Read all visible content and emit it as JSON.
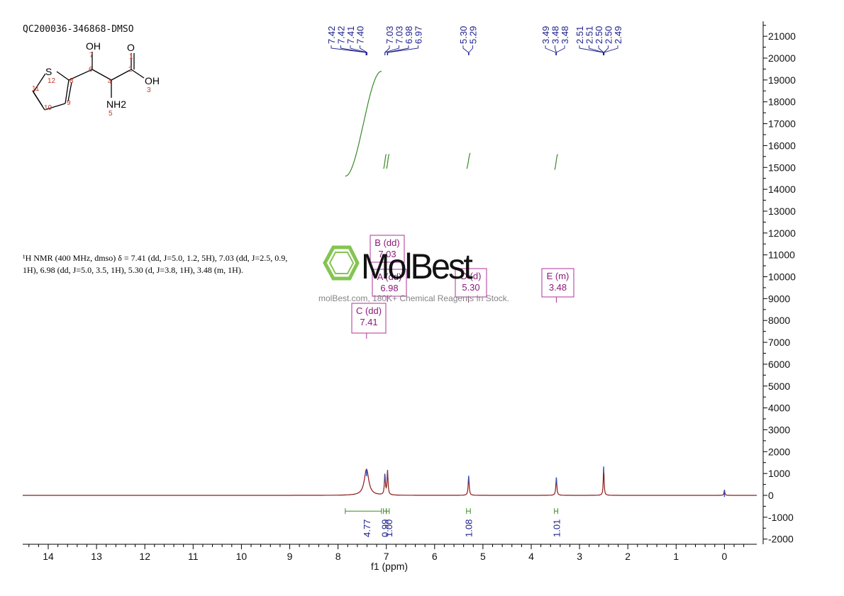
{
  "sample_id": "QC200036-346868-DMSO",
  "structure": {
    "atoms": [
      {
        "label": "OH",
        "num": "7"
      },
      {
        "label": "O",
        "num": "1"
      },
      {
        "label": "S",
        "num": "12"
      },
      {
        "label": "OH",
        "num": "3"
      },
      {
        "label": "NH2",
        "num": "5"
      }
    ],
    "locants": [
      "6",
      "2",
      "8",
      "4",
      "11",
      "10",
      "9"
    ]
  },
  "nmr_description": {
    "line1": "¹H NMR (400 MHz, dmso) δ = 7.41 (dd, J=5.0, 1.2, 5H), 7.03 (dd, J=2.5, 0.9,",
    "line2": "1H), 6.98 (dd, J=5.0, 3.5, 1H), 5.30 (d, J=3.8, 1H), 3.48 (m, 1H)."
  },
  "watermark": {
    "brand": "MolBest",
    "tagline": "molBest.com, 180K+ Chemical Reagents In Stock."
  },
  "colors": {
    "spectrum": "#8b1a1a",
    "integral": "#3a8a2a",
    "peak_label": "#1b1f8a",
    "multiplet_box": "#b0309a",
    "watermark_green": "#7bc043"
  },
  "chart_data": {
    "type": "line",
    "title": "",
    "xlabel": "f1 (ppm)",
    "ylabel": "",
    "x_reversed": true,
    "xlim": [
      14.5,
      -0.55
    ],
    "ylim": [
      -2000,
      21500
    ],
    "x_ticks": [
      "14",
      "13",
      "12",
      "11",
      "10",
      "9",
      "8",
      "7",
      "6",
      "5",
      "4",
      "3",
      "2",
      "1",
      "0"
    ],
    "y_ticks": [
      "21000",
      "20000",
      "19000",
      "18000",
      "17000",
      "16000",
      "15000",
      "14000",
      "13000",
      "12000",
      "11000",
      "10000",
      "9000",
      "8000",
      "7000",
      "6000",
      "5000",
      "4000",
      "3000",
      "2000",
      "1000",
      "0",
      "-1000",
      "-2000"
    ],
    "peaks": [
      {
        "ppm": 7.41,
        "height": 1200,
        "width": 0.055
      },
      {
        "ppm": 7.03,
        "height": 950,
        "width": 0.012
      },
      {
        "ppm": 6.975,
        "height": 1120,
        "width": 0.012
      },
      {
        "ppm": 5.295,
        "height": 900,
        "width": 0.012
      },
      {
        "ppm": 3.48,
        "height": 820,
        "width": 0.012
      },
      {
        "ppm": 2.5,
        "height": 1320,
        "width": 0.01
      },
      {
        "ppm": 0.0,
        "height": 250,
        "width": 0.01
      }
    ],
    "peak_labels": [
      {
        "text": "7.42",
        "ppm": 7.42
      },
      {
        "text": "7.42",
        "ppm": 7.418
      },
      {
        "text": "7.41",
        "ppm": 7.41
      },
      {
        "text": "7.40",
        "ppm": 7.4
      },
      {
        "text": "7.03",
        "ppm": 7.03
      },
      {
        "text": "7.03",
        "ppm": 7.028
      },
      {
        "text": "6.98",
        "ppm": 6.98
      },
      {
        "text": "6.97",
        "ppm": 6.97
      },
      {
        "text": "5.30",
        "ppm": 5.3
      },
      {
        "text": "5.29",
        "ppm": 5.29
      },
      {
        "text": "3.49",
        "ppm": 3.49
      },
      {
        "text": "3.48",
        "ppm": 3.48
      },
      {
        "text": "3.48",
        "ppm": 3.478
      },
      {
        "text": "2.51",
        "ppm": 2.51
      },
      {
        "text": "2.51",
        "ppm": 2.508
      },
      {
        "text": "2.50",
        "ppm": 2.5
      },
      {
        "text": "2.50",
        "ppm": 2.498
      },
      {
        "text": "2.49",
        "ppm": 2.49
      }
    ],
    "integrals": [
      {
        "value": "4.77",
        "from": 7.85,
        "to": 7.1,
        "curve_low": 14600,
        "curve_high": 19400
      },
      {
        "value": "0.99",
        "from": 7.06,
        "to": 7.0,
        "curve_low": 14950,
        "curve_high": 15600
      },
      {
        "value": "1.00",
        "from": 7.0,
        "to": 6.94,
        "curve_low": 14950,
        "curve_high": 15600
      },
      {
        "value": "1.08",
        "from": 5.34,
        "to": 5.26,
        "curve_low": 14950,
        "curve_high": 15650
      },
      {
        "value": "1.01",
        "from": 3.52,
        "to": 3.45,
        "curve_low": 14900,
        "curve_high": 15600
      }
    ],
    "multiplets": [
      {
        "name": "B (dd)",
        "value": "7.03",
        "ppm": 7.03
      },
      {
        "name": "A (dd)",
        "value": "6.98",
        "ppm": 6.98
      },
      {
        "name": "C (dd)",
        "value": "7.41",
        "ppm": 7.41
      },
      {
        "name": "D (d)",
        "value": "5.30",
        "ppm": 5.3
      },
      {
        "name": "E (m)",
        "value": "3.48",
        "ppm": 3.48
      }
    ]
  }
}
